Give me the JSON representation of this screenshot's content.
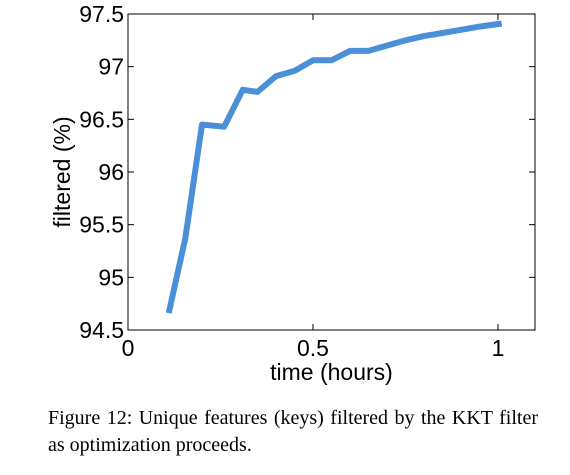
{
  "chart_data": {
    "type": "line",
    "xlabel": "time (hours)",
    "ylabel": "filtered (%)",
    "xlim": [
      0,
      1.1
    ],
    "ylim": [
      94.5,
      97.5
    ],
    "xticks": [
      0,
      0.5,
      1
    ],
    "xtick_labels": [
      "0",
      "0.5",
      "1"
    ],
    "yticks": [
      94.5,
      95,
      95.5,
      96,
      96.5,
      97,
      97.5
    ],
    "ytick_labels": [
      "94.5",
      "95",
      "95.5",
      "96",
      "96.5",
      "97",
      "97.5"
    ],
    "grid": false,
    "series": [
      {
        "color": "#4a90d9",
        "x": [
          0.11,
          0.155,
          0.2,
          0.26,
          0.31,
          0.35,
          0.4,
          0.45,
          0.5,
          0.55,
          0.6,
          0.65,
          0.7,
          0.75,
          0.8,
          0.85,
          0.9,
          0.95,
          1.01
        ],
        "y": [
          94.66,
          95.37,
          96.45,
          96.43,
          96.78,
          96.76,
          96.91,
          96.96,
          97.06,
          97.06,
          97.15,
          97.15,
          97.2,
          97.25,
          97.29,
          97.32,
          97.35,
          97.38,
          97.41
        ]
      }
    ]
  },
  "caption": "Figure 12:  Unique features (keys) filtered by the KKT filter as optimization proceeds."
}
